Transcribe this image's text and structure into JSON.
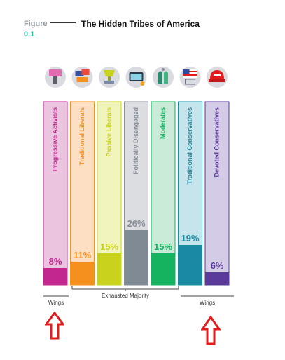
{
  "figure": {
    "label": "Figure",
    "number": "0.1"
  },
  "title": "The Hidden Tribes of America",
  "chart_data": {
    "type": "bar",
    "title": "The Hidden Tribes of America",
    "categories": [
      "Progressive Activists",
      "Traditional Liberals",
      "Passive Liberals",
      "Politically Disengaged",
      "Moderates",
      "Traditional Conservatives",
      "Devoted Conservatives"
    ],
    "values": [
      8,
      11,
      15,
      26,
      15,
      19,
      6
    ],
    "value_labels": [
      "8%",
      "11%",
      "15%",
      "26%",
      "15%",
      "19%",
      "6%"
    ],
    "ylim": [
      0,
      100
    ],
    "icons": [
      "protest-fist-icon",
      "liberal-signs-icon",
      "trophy-icon",
      "video-game-icon",
      "thinking-hands-icon",
      "us-flag-house-icon",
      "red-cap-icon"
    ],
    "colors": {
      "bar": [
        "#c2278f",
        "#f5901e",
        "#c9d31e",
        "#808a94",
        "#15b35f",
        "#1a8aa3",
        "#5a3a9a"
      ],
      "panel": [
        "#ebc5df",
        "#fde0c4",
        "#f2f4be",
        "#dcdde1",
        "#c8ead6",
        "#c5e4ec",
        "#d4cbe6"
      ],
      "border": [
        "#c2278f",
        "#f5901e",
        "#c9d31e",
        "#8a9098",
        "#15b35f",
        "#1a8aa3",
        "#5a3a9a"
      ],
      "text": [
        "#c2278f",
        "#f5901e",
        "#c9d31e",
        "#8a9098",
        "#15b35f",
        "#1a8aa3",
        "#5a3a9a"
      ]
    },
    "groups": [
      {
        "label": "Wings",
        "members": [
          0
        ]
      },
      {
        "label": "Exhausted Majority",
        "members": [
          1,
          2,
          3,
          4
        ]
      },
      {
        "label": "Wings",
        "members": [
          5,
          6
        ]
      }
    ]
  },
  "annotations": {
    "arrow_color": "#e31b1b"
  }
}
